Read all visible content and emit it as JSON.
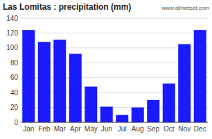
{
  "chart_data": {
    "type": "bar",
    "title": "Las Lomitas : precipitation (mm)",
    "categories": [
      "Jan",
      "Feb",
      "Mar",
      "Apr",
      "May",
      "Jun",
      "Jul",
      "Aug",
      "Sep",
      "Oct",
      "Nov",
      "Dec"
    ],
    "values": [
      124,
      108,
      111,
      92,
      48,
      21,
      10,
      20,
      30,
      52,
      105,
      124
    ],
    "color": "#1a1aff",
    "ylim": [
      0,
      140
    ],
    "yticks": [
      0,
      20,
      40,
      60,
      80,
      100,
      120,
      140
    ],
    "grid": true,
    "annotations": [
      "www.allmetsat.com"
    ]
  }
}
